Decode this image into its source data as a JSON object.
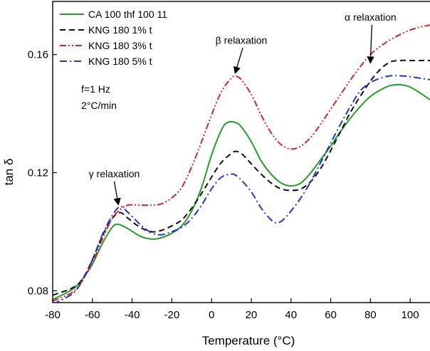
{
  "chart_data": {
    "type": "line",
    "xlabel": "Temperature (°C)",
    "ylabel": "tan δ",
    "xlim": [
      -80,
      110
    ],
    "ylim": [
      0.076,
      0.178
    ],
    "x_ticks": [
      -80,
      -60,
      -40,
      -20,
      0,
      20,
      40,
      60,
      80,
      100
    ],
    "y_ticks": [
      0.08,
      0.12,
      0.16
    ],
    "y_tick_labels": [
      "0.08",
      "0.12",
      "0.16"
    ],
    "legend_position": "top-left",
    "conditions": [
      "f=1 Hz",
      "2°C/min"
    ],
    "series": [
      {
        "name": "CA 100 thf 100 11",
        "color": "#22a022",
        "dash": "solid",
        "points": [
          [
            -80,
            0.077
          ],
          [
            -70,
            0.0805
          ],
          [
            -65,
            0.084
          ],
          [
            -60,
            0.089
          ],
          [
            -55,
            0.096
          ],
          [
            -50,
            0.1015
          ],
          [
            -47,
            0.1025
          ],
          [
            -42,
            0.101
          ],
          [
            -36,
            0.0985
          ],
          [
            -30,
            0.0975
          ],
          [
            -25,
            0.098
          ],
          [
            -20,
            0.0995
          ],
          [
            -15,
            0.102
          ],
          [
            -10,
            0.107
          ],
          [
            -5,
            0.115
          ],
          [
            0,
            0.126
          ],
          [
            5,
            0.1345
          ],
          [
            8,
            0.137
          ],
          [
            12,
            0.137
          ],
          [
            15,
            0.1355
          ],
          [
            20,
            0.1305
          ],
          [
            25,
            0.124
          ],
          [
            30,
            0.1195
          ],
          [
            35,
            0.1165
          ],
          [
            40,
            0.1155
          ],
          [
            45,
            0.1165
          ],
          [
            50,
            0.12
          ],
          [
            55,
            0.1245
          ],
          [
            60,
            0.129
          ],
          [
            65,
            0.134
          ],
          [
            70,
            0.1385
          ],
          [
            75,
            0.1425
          ],
          [
            80,
            0.1458
          ],
          [
            85,
            0.148
          ],
          [
            90,
            0.1495
          ],
          [
            95,
            0.1498
          ],
          [
            100,
            0.149
          ],
          [
            105,
            0.147
          ],
          [
            110,
            0.1447
          ]
        ]
      },
      {
        "name": "KNG 180 1% t",
        "color": "#111111",
        "dash": "dashed",
        "points": [
          [
            -80,
            0.0785
          ],
          [
            -70,
            0.081
          ],
          [
            -65,
            0.084
          ],
          [
            -60,
            0.0905
          ],
          [
            -55,
            0.0985
          ],
          [
            -50,
            0.1045
          ],
          [
            -46,
            0.1065
          ],
          [
            -42,
            0.1045
          ],
          [
            -36,
            0.1015
          ],
          [
            -30,
            0.1
          ],
          [
            -25,
            0.1005
          ],
          [
            -20,
            0.102
          ],
          [
            -15,
            0.104
          ],
          [
            -10,
            0.108
          ],
          [
            -5,
            0.113
          ],
          [
            0,
            0.1185
          ],
          [
            5,
            0.1235
          ],
          [
            10,
            0.1265
          ],
          [
            12,
            0.1272
          ],
          [
            15,
            0.1265
          ],
          [
            20,
            0.123
          ],
          [
            25,
            0.1195
          ],
          [
            30,
            0.1165
          ],
          [
            35,
            0.1145
          ],
          [
            40,
            0.114
          ],
          [
            45,
            0.1145
          ],
          [
            50,
            0.117
          ],
          [
            55,
            0.1215
          ],
          [
            60,
            0.1275
          ],
          [
            65,
            0.134
          ],
          [
            70,
            0.1405
          ],
          [
            75,
            0.146
          ],
          [
            80,
            0.151
          ],
          [
            85,
            0.155
          ],
          [
            90,
            0.1575
          ],
          [
            95,
            0.158
          ],
          [
            100,
            0.158
          ],
          [
            105,
            0.158
          ],
          [
            110,
            0.158
          ]
        ]
      },
      {
        "name": "KNG 180 3% t",
        "color": "#dd2222",
        "dash": "dashdotdot",
        "points": [
          [
            -80,
            0.0765
          ],
          [
            -70,
            0.0795
          ],
          [
            -65,
            0.0835
          ],
          [
            -60,
            0.0895
          ],
          [
            -55,
            0.0975
          ],
          [
            -50,
            0.1045
          ],
          [
            -46,
            0.1075
          ],
          [
            -42,
            0.109
          ],
          [
            -36,
            0.109
          ],
          [
            -30,
            0.109
          ],
          [
            -25,
            0.1095
          ],
          [
            -20,
            0.1115
          ],
          [
            -15,
            0.115
          ],
          [
            -10,
            0.122
          ],
          [
            -5,
            0.1305
          ],
          [
            0,
            0.1395
          ],
          [
            5,
            0.1475
          ],
          [
            10,
            0.152
          ],
          [
            12,
            0.1527
          ],
          [
            15,
            0.1515
          ],
          [
            20,
            0.1465
          ],
          [
            25,
            0.1395
          ],
          [
            30,
            0.1335
          ],
          [
            35,
            0.1295
          ],
          [
            40,
            0.128
          ],
          [
            45,
            0.129
          ],
          [
            50,
            0.132
          ],
          [
            55,
            0.1365
          ],
          [
            60,
            0.1415
          ],
          [
            65,
            0.1465
          ],
          [
            70,
            0.1515
          ],
          [
            75,
            0.156
          ],
          [
            80,
            0.16
          ],
          [
            85,
            0.1628
          ],
          [
            90,
            0.165
          ],
          [
            95,
            0.1668
          ],
          [
            100,
            0.1683
          ],
          [
            105,
            0.1693
          ],
          [
            110,
            0.17
          ]
        ]
      },
      {
        "name": "KNG 180 5% t",
        "color": "#2233dd",
        "dash": "dashdot",
        "points": [
          [
            -80,
            0.0755
          ],
          [
            -70,
            0.079
          ],
          [
            -65,
            0.0835
          ],
          [
            -60,
            0.0905
          ],
          [
            -55,
            0.099
          ],
          [
            -50,
            0.1055
          ],
          [
            -46,
            0.1085
          ],
          [
            -42,
            0.1065
          ],
          [
            -36,
            0.1025
          ],
          [
            -30,
            0.0995
          ],
          [
            -25,
            0.099
          ],
          [
            -20,
            0.1
          ],
          [
            -15,
            0.1015
          ],
          [
            -10,
            0.1045
          ],
          [
            -5,
            0.109
          ],
          [
            0,
            0.1145
          ],
          [
            5,
            0.1185
          ],
          [
            10,
            0.1195
          ],
          [
            12,
            0.1192
          ],
          [
            15,
            0.1175
          ],
          [
            20,
            0.1135
          ],
          [
            25,
            0.108
          ],
          [
            30,
            0.104
          ],
          [
            33,
            0.103
          ],
          [
            36,
            0.104
          ],
          [
            40,
            0.107
          ],
          [
            45,
            0.1115
          ],
          [
            50,
            0.117
          ],
          [
            55,
            0.1235
          ],
          [
            60,
            0.13
          ],
          [
            65,
            0.1365
          ],
          [
            70,
            0.1425
          ],
          [
            75,
            0.1478
          ],
          [
            80,
            0.1505
          ],
          [
            85,
            0.152
          ],
          [
            90,
            0.1528
          ],
          [
            95,
            0.1528
          ],
          [
            100,
            0.1525
          ],
          [
            105,
            0.152
          ],
          [
            110,
            0.1515
          ]
        ]
      }
    ],
    "annotations": [
      {
        "text": "γ relaxation",
        "x": -47,
        "y": 0.1085,
        "label_x": -49,
        "label_y": 0.1185
      },
      {
        "text": "β relaxation",
        "x": 12,
        "y": 0.153,
        "label_x": 15,
        "label_y": 0.1637
      },
      {
        "text": "α relaxation",
        "x": 80,
        "y": 0.1565,
        "label_x": 80,
        "label_y": 0.1715
      }
    ]
  }
}
